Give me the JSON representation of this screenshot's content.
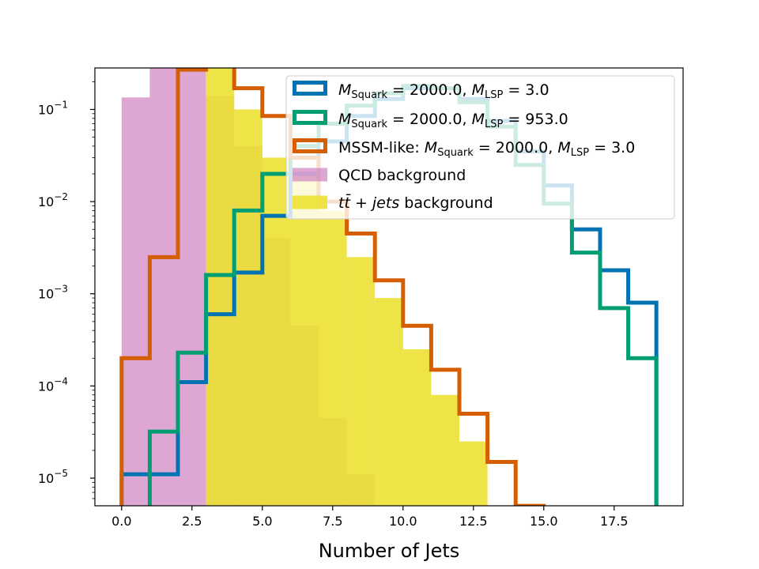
{
  "chart_data": {
    "type": "histogram",
    "title": "",
    "xlabel": "Number of Jets",
    "ylabel": "",
    "xlim": [
      -0.95,
      19.95
    ],
    "ylim_log10": [
      -5.3,
      -0.55
    ],
    "yscale": "log",
    "x_ticks": [
      0.0,
      2.5,
      5.0,
      7.5,
      10.0,
      12.5,
      15.0,
      17.5
    ],
    "x_tick_labels": [
      "0.0",
      "2.5",
      "5.0",
      "7.5",
      "10.0",
      "12.5",
      "15.0",
      "17.5"
    ],
    "y_ticks": [
      {
        "exp": -5,
        "base": "10",
        "power": "−5"
      },
      {
        "exp": -4,
        "base": "10",
        "power": "−4"
      },
      {
        "exp": -3,
        "base": "10",
        "power": "−3"
      },
      {
        "exp": -2,
        "base": "10",
        "power": "−2"
      },
      {
        "exp": -1,
        "base": "10",
        "power": "−1"
      }
    ],
    "bin_edges": [
      0,
      1,
      2,
      3,
      4,
      5,
      6,
      7,
      8,
      9,
      10,
      11,
      12,
      13,
      14,
      15,
      16,
      17,
      18,
      19
    ],
    "series": [
      {
        "name": "QCD background",
        "kind": "filled",
        "color": "#cc78bc",
        "opacity": 0.65,
        "values": [
          0.135,
          0.42,
          0.42,
          0.14,
          0.04,
          0.004,
          0.00045,
          4.5e-05,
          1.1e-05,
          0,
          0,
          0,
          0,
          0,
          0,
          0,
          0,
          0,
          0
        ]
      },
      {
        "name": "tt + jets background",
        "kind": "filled",
        "color": "#ece133",
        "opacity": 0.9,
        "values": [
          0,
          0,
          0,
          0.3,
          0.1,
          0.03,
          0.02,
          0.008,
          0.0025,
          0.0009,
          0.00025,
          8e-05,
          2.5e-05,
          0,
          0,
          0,
          0,
          0,
          0
        ]
      },
      {
        "name": "M_Squark = 2000.0, M_LSP = 3.0",
        "kind": "step",
        "color": "#0173b2",
        "values": [
          1.1e-05,
          1.1e-05,
          0.00011,
          0.0006,
          0.0017,
          0.007,
          0.02,
          0.045,
          0.085,
          0.13,
          0.17,
          0.17,
          0.13,
          0.075,
          0.035,
          0.015,
          0.005,
          0.0018,
          0.0008
        ]
      },
      {
        "name": "M_Squark = 2000.0, M_LSP = 953.0",
        "kind": "step",
        "color": "#029e73",
        "values": [
          2.5e-06,
          3.2e-05,
          0.00023,
          0.0016,
          0.008,
          0.02,
          0.04,
          0.07,
          0.11,
          0.15,
          0.18,
          0.17,
          0.12,
          0.065,
          0.025,
          0.0095,
          0.0028,
          0.0007,
          0.0002
        ]
      },
      {
        "name": "MSSM-like: M_Squark = 2000.0, M_LSP = 3.0",
        "kind": "step",
        "color": "#d55e00",
        "values": [
          0.0002,
          0.0025,
          0.27,
          0.31,
          0.17,
          0.085,
          0.03,
          0.01,
          0.0045,
          0.0014,
          0.00045,
          0.00015,
          5e-05,
          1.5e-05,
          5e-06,
          0,
          0,
          0,
          0
        ]
      }
    ],
    "legend": {
      "placement": "upper-right",
      "entries": [
        {
          "label": "= 2000.0,",
          "label2": "= 3.0",
          "color": "#0173b2",
          "style": "outline"
        },
        {
          "label": "= 2000.0,",
          "label2": "= 953.0",
          "color": "#029e73",
          "style": "outline"
        },
        {
          "label": "MSSM-like:",
          "label_mid": "= 2000.0,",
          "label2": "= 3.0",
          "color": "#d55e00",
          "style": "outline"
        },
        {
          "label": "QCD background",
          "color": "#cc78bc",
          "style": "filled"
        },
        {
          "label": "+",
          "label2": "background",
          "color": "#ece133",
          "style": "filled"
        }
      ],
      "sym_m": "M",
      "sub_squark": "Squark",
      "sub_lsp": "LSP",
      "sym_tt": "tt̄",
      "word_jets": "jets"
    }
  }
}
